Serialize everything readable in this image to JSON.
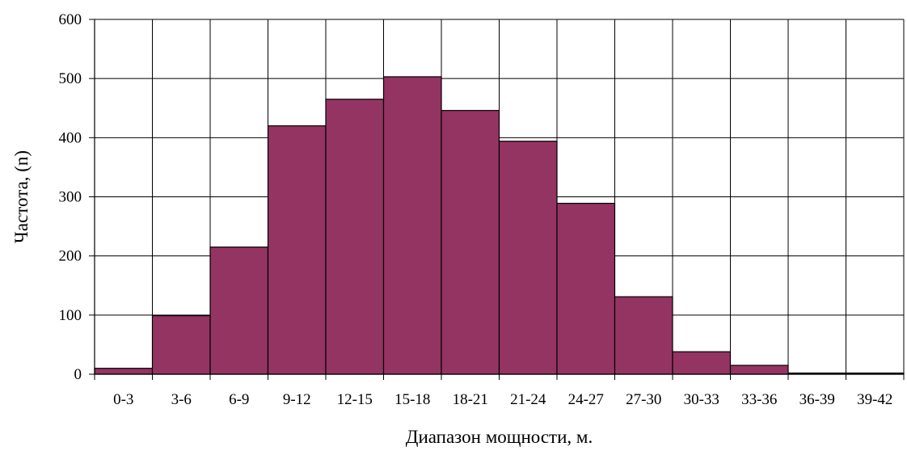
{
  "chart_data": {
    "type": "bar",
    "xlabel": "Диапазон мощности, м.",
    "ylabel": "Частота, (n)",
    "categories": [
      "0-3",
      "3-6",
      "6-9",
      "9-12",
      "12-15",
      "15-18",
      "18-21",
      "21-24",
      "24-27",
      "27-30",
      "30-33",
      "33-36",
      "36-39",
      "39-42"
    ],
    "values": [
      10,
      99,
      215,
      420,
      465,
      503,
      446,
      394,
      289,
      131,
      38,
      15,
      2,
      2
    ],
    "ylim": [
      0,
      600
    ],
    "yticks": [
      0,
      100,
      200,
      300,
      400,
      500,
      600
    ],
    "grid": true,
    "legend": "none",
    "colors": {
      "bar": "#943462",
      "outline": "#000000",
      "grid": "#000000"
    }
  }
}
